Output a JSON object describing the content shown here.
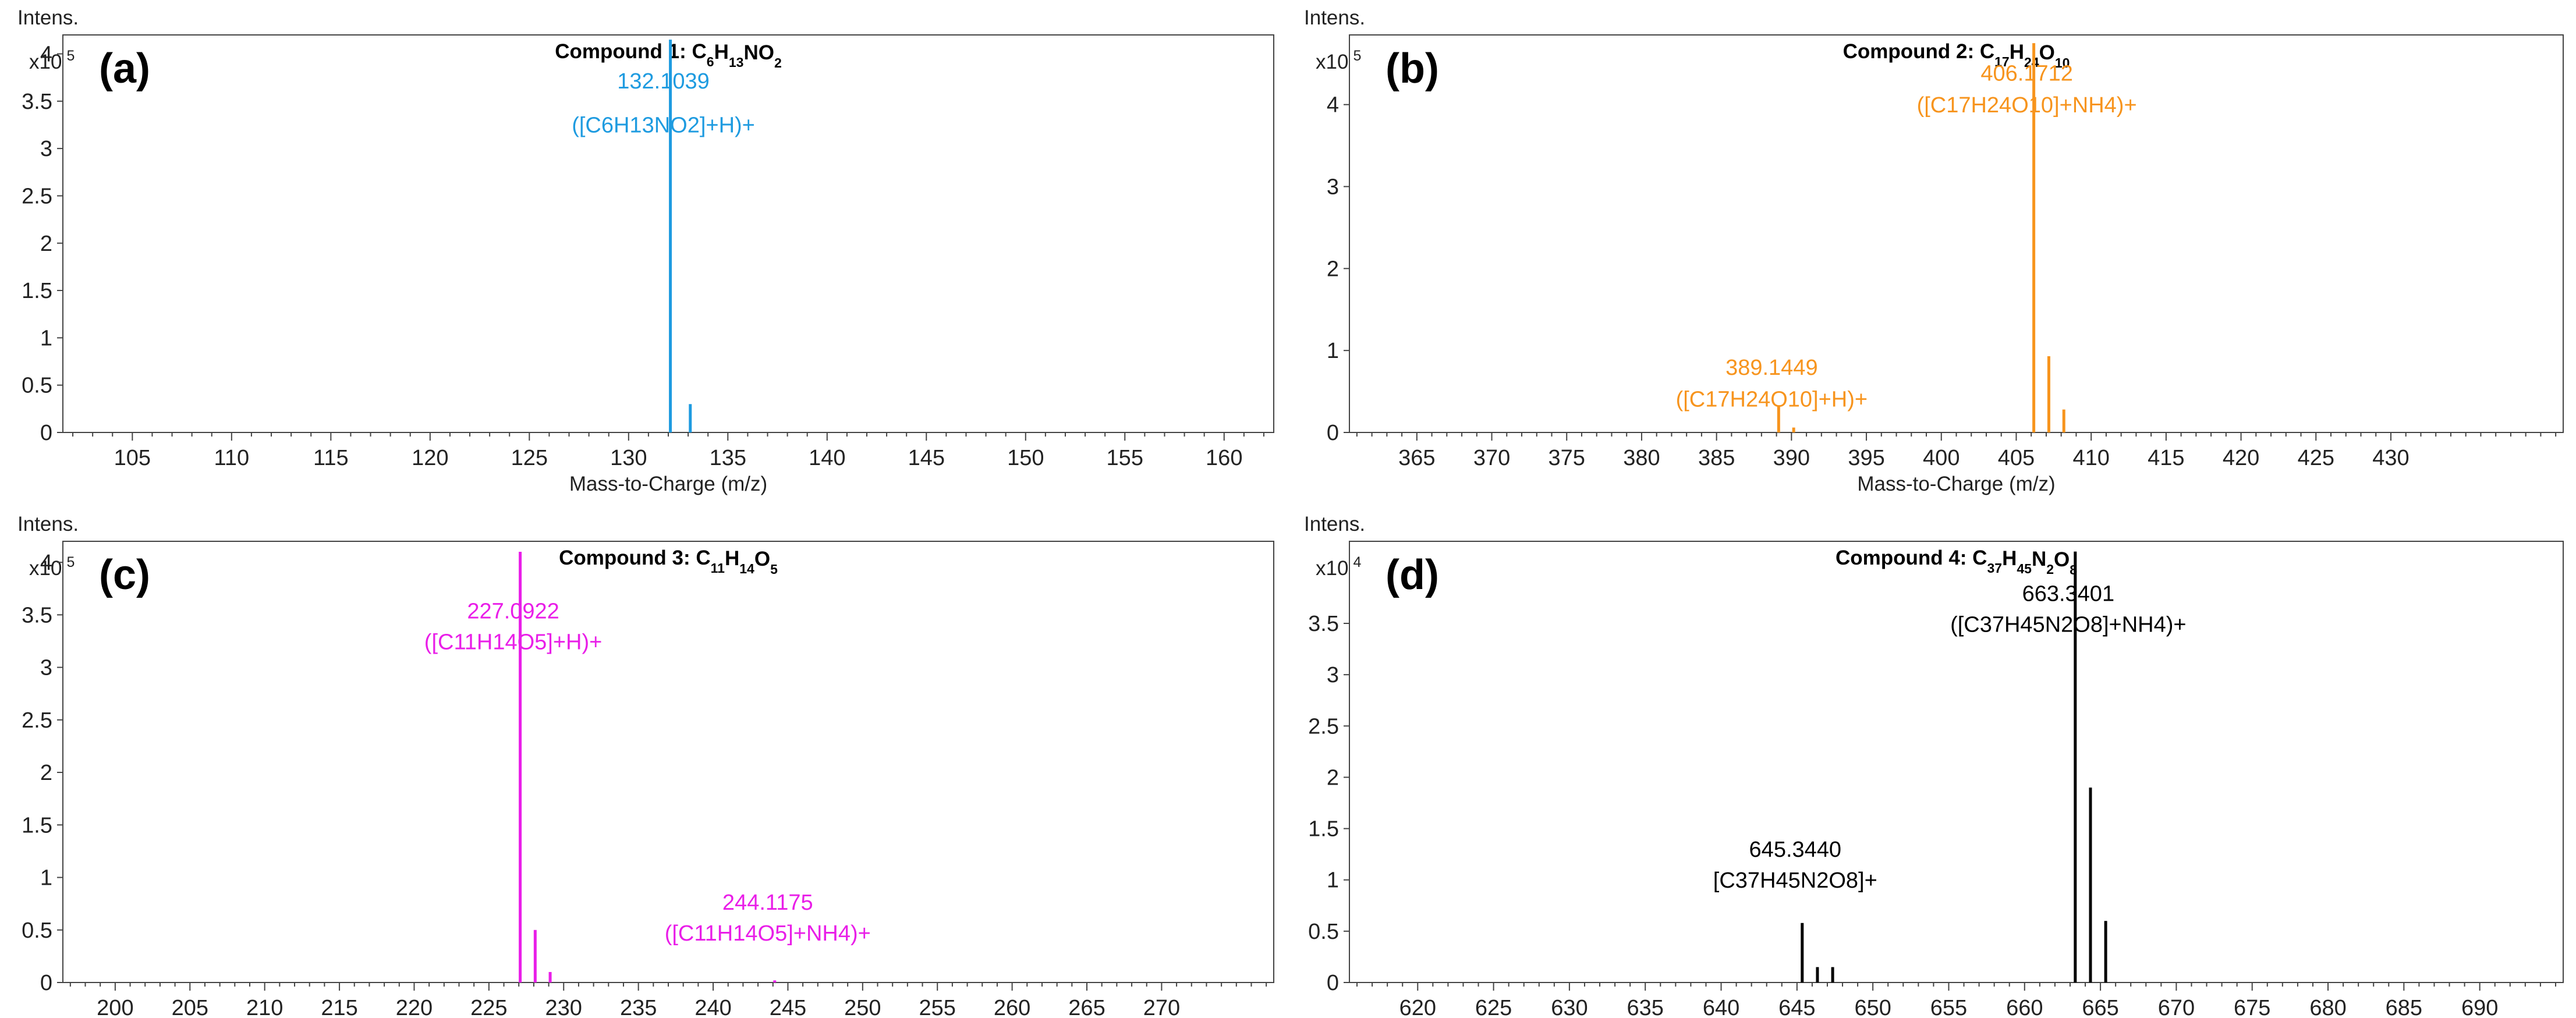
{
  "chart_data": [
    {
      "type": "bar",
      "panel_label": "(a)",
      "title_parts": [
        "Compound 1: C",
        "6",
        "H",
        "13",
        "NO",
        "2"
      ],
      "y_unit_label": "Intens.",
      "y_scale_base": "x10",
      "y_scale_exp": "5",
      "xlabel": "Mass-to-Charge (m/z)",
      "xlim": [
        101.5,
        162.5
      ],
      "ylim": [
        0,
        4.2
      ],
      "xticks": [
        105,
        110,
        115,
        120,
        125,
        130,
        135,
        140,
        145,
        150,
        155,
        160
      ],
      "yticks": [
        0,
        0.5,
        1,
        1.5,
        2,
        2.5,
        3,
        3.5,
        4
      ],
      "color": "#1E9BE0",
      "peaks": [
        {
          "mz": 132.1039,
          "intensity": 4.15
        },
        {
          "mz": 133.107,
          "intensity": 0.3
        }
      ],
      "annotations": [
        {
          "mz_text": "132.1039",
          "ion": "([C6H13NO2]+H)+",
          "at_x": 132.1039,
          "side": "left"
        }
      ]
    },
    {
      "type": "bar",
      "panel_label": "(b)",
      "title_parts": [
        "Compound 2: C",
        "17",
        "H",
        "24",
        "O",
        "10"
      ],
      "y_unit_label": "Intens.",
      "y_scale_base": "x10",
      "y_scale_exp": "5",
      "xlabel": "Mass-to-Charge (m/z)",
      "xlim": [
        360.5,
        441.5
      ],
      "ylim": [
        0,
        4.85
      ],
      "xticks": [
        365,
        370,
        375,
        380,
        385,
        390,
        395,
        400,
        405,
        410,
        415,
        420,
        425,
        430
      ],
      "yticks": [
        0,
        1,
        2,
        3,
        4
      ],
      "color": "#F7941D",
      "peaks": [
        {
          "mz": 389.1449,
          "intensity": 0.32
        },
        {
          "mz": 390.148,
          "intensity": 0.06
        },
        {
          "mz": 406.1712,
          "intensity": 4.75
        },
        {
          "mz": 407.175,
          "intensity": 0.93
        },
        {
          "mz": 408.177,
          "intensity": 0.28
        }
      ],
      "annotations": [
        {
          "mz_text": "389.1449",
          "ion": "([C17H24O10]+H)+",
          "at_x": 389.1449,
          "side": "left"
        },
        {
          "mz_text": "406.1712",
          "ion": "([C17H24O10]+NH4)+",
          "at_x": 406.1712,
          "side": "left"
        }
      ]
    },
    {
      "type": "bar",
      "panel_label": "(c)",
      "title_parts": [
        "Compound 3: C",
        "11",
        "H",
        "14",
        "O",
        "5"
      ],
      "y_unit_label": "Intens.",
      "y_scale_base": "x10",
      "y_scale_exp": "5",
      "xlabel": "Mass-to-Charge (m/z)",
      "xlim": [
        196.5,
        277.5
      ],
      "ylim": [
        0,
        4.2
      ],
      "xticks": [
        200,
        205,
        210,
        215,
        220,
        225,
        230,
        235,
        240,
        245,
        250,
        255,
        260,
        265,
        270
      ],
      "yticks": [
        0,
        0.5,
        1,
        1.5,
        2,
        2.5,
        3,
        3.5,
        4
      ],
      "color": "#E91EE8",
      "peaks": [
        {
          "mz": 227.0922,
          "intensity": 4.1
        },
        {
          "mz": 228.095,
          "intensity": 0.5
        },
        {
          "mz": 229.097,
          "intensity": 0.1
        },
        {
          "mz": 244.1175,
          "intensity": 0.02
        }
      ],
      "annotations": [
        {
          "mz_text": "227.0922",
          "ion": "([C11H14O5]+H)+",
          "at_x": 227.0922,
          "side": "left"
        },
        {
          "mz_text": "244.1175",
          "ion": "([C11H14O5]+NH4)+",
          "at_x": 244.1175,
          "side": "left"
        }
      ]
    },
    {
      "type": "bar",
      "panel_label": "(d)",
      "title_parts": [
        "Compound 4: C",
        "37",
        "H",
        "45",
        "N",
        "2",
        "O",
        "8"
      ],
      "y_unit_label": "Intens.",
      "y_scale_base": "x10",
      "y_scale_exp": "4",
      "xlabel": "Mass-to-Charge (m/z)",
      "xlim": [
        615.5,
        695.5
      ],
      "ylim": [
        0,
        4.3
      ],
      "xticks": [
        620,
        625,
        630,
        635,
        640,
        645,
        650,
        655,
        660,
        665,
        670,
        675,
        680,
        685,
        690
      ],
      "yticks": [
        0,
        0.5,
        1,
        1.5,
        2,
        2.5,
        3,
        3.5
      ],
      "color": "#000000",
      "peaks": [
        {
          "mz": 645.344,
          "intensity": 0.58
        },
        {
          "mz": 646.347,
          "intensity": 0.15
        },
        {
          "mz": 647.35,
          "intensity": 0.15
        },
        {
          "mz": 663.3401,
          "intensity": 4.2
        },
        {
          "mz": 664.343,
          "intensity": 1.9
        },
        {
          "mz": 665.346,
          "intensity": 0.6
        }
      ],
      "annotations": [
        {
          "mz_text": "645.3440",
          "ion": "[C37H45N2O8]+",
          "at_x": 645.344,
          "side": "left"
        },
        {
          "mz_text": "663.3401",
          "ion": "([C37H45N2O8]+NH4)+",
          "at_x": 663.3401,
          "side": "left"
        }
      ]
    }
  ]
}
